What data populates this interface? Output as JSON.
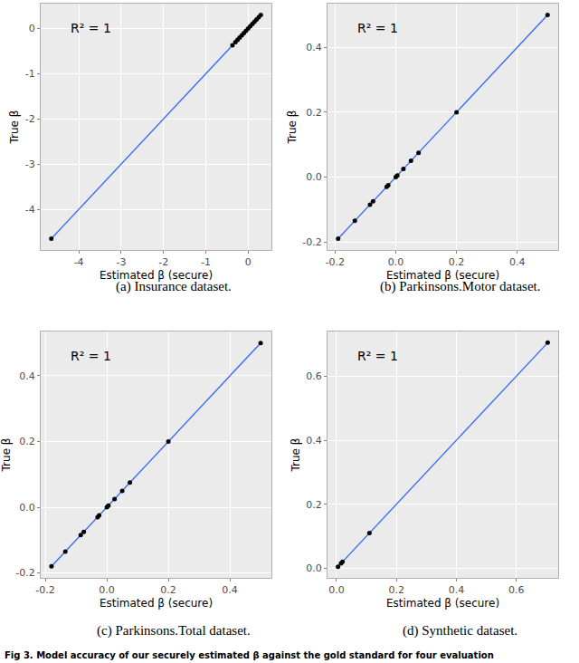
{
  "caption": "Fig 3. Model accuracy of our securely estimated β against the gold standard for four evaluation",
  "chart_data": [
    {
      "type": "scatter",
      "title": "(a) Insurance dataset.",
      "x_label": "Estimated β (secure)",
      "y_label": "True β",
      "annotations": [
        "R² = 1"
      ],
      "color": "#000000",
      "grid": true,
      "x": [
        -4.65,
        -0.37,
        -0.3,
        -0.25,
        -0.2,
        -0.15,
        -0.1,
        -0.05,
        0,
        0.05,
        0.1,
        0.15,
        0.2,
        0.25,
        0.3
      ],
      "values": [
        -4.65,
        -0.37,
        -0.3,
        -0.25,
        -0.2,
        -0.15,
        -0.1,
        -0.05,
        0,
        0.05,
        0.1,
        0.15,
        0.2,
        0.25,
        0.3
      ],
      "xlim": [
        -4.9,
        0.55
      ],
      "ylim": [
        -4.9,
        0.55
      ],
      "xticks": [
        -4,
        -3,
        -2,
        -1,
        0
      ],
      "yticks": [
        -4,
        -3,
        -2,
        -1,
        0
      ]
    },
    {
      "type": "scatter",
      "title": "(b) Parkinsons.Motor dataset.",
      "x_label": "Estimated β (secure)",
      "y_label": "True β",
      "annotations": [
        "R² = 1"
      ],
      "color": "#000000",
      "grid": true,
      "x": [
        -0.19,
        -0.135,
        -0.085,
        -0.075,
        -0.03,
        -0.025,
        0,
        0.005,
        0.025,
        0.05,
        0.075,
        0.2,
        0.5
      ],
      "values": [
        -0.19,
        -0.135,
        -0.085,
        -0.075,
        -0.03,
        -0.025,
        0,
        0.005,
        0.025,
        0.05,
        0.075,
        0.2,
        0.5
      ],
      "xlim": [
        -0.225,
        0.535
      ],
      "ylim": [
        -0.225,
        0.535
      ],
      "xticks": [
        -0.2,
        {
          "value": 0,
          "label": "0.0"
        },
        0.2,
        0.4
      ],
      "yticks": [
        -0.2,
        {
          "value": 0,
          "label": "0.0"
        },
        0.2,
        0.4
      ]
    },
    {
      "type": "scatter",
      "title": "(c) Parkinsons.Total dataset.",
      "x_label": "Estimated β (secure)",
      "y_label": "True β",
      "annotations": [
        "R² = 1"
      ],
      "color": "#000000",
      "grid": true,
      "x": [
        -0.18,
        -0.135,
        -0.085,
        -0.075,
        -0.03,
        -0.025,
        0,
        0.005,
        0.025,
        0.05,
        0.075,
        0.2,
        0.5
      ],
      "values": [
        -0.18,
        -0.135,
        -0.085,
        -0.075,
        -0.03,
        -0.025,
        0,
        0.005,
        0.025,
        0.05,
        0.075,
        0.2,
        0.5
      ],
      "xlim": [
        -0.215,
        0.535
      ],
      "ylim": [
        -0.215,
        0.535
      ],
      "xticks": [
        -0.2,
        {
          "value": 0,
          "label": "0.0"
        },
        0.2,
        0.4
      ],
      "yticks": [
        -0.2,
        {
          "value": 0,
          "label": "0.0"
        },
        0.2,
        0.4
      ]
    },
    {
      "type": "scatter",
      "title": "(d) Synthetic dataset.",
      "x_label": "Estimated β (secure)",
      "y_label": "True β",
      "annotations": [
        "R² = 1"
      ],
      "color": "#000000",
      "grid": true,
      "x": [
        0.005,
        0.015,
        0.02,
        0.11,
        0.705
      ],
      "values": [
        0.005,
        0.015,
        0.02,
        0.11,
        0.705
      ],
      "xlim": [
        -0.03,
        0.74
      ],
      "ylim": [
        -0.03,
        0.74
      ],
      "xticks": [
        {
          "value": 0,
          "label": "0.0"
        },
        {
          "value": 0.2,
          "label": "0.2"
        },
        {
          "value": 0.4,
          "label": "0.4"
        },
        {
          "value": 0.6,
          "label": "0.6"
        }
      ],
      "yticks": [
        {
          "value": 0,
          "label": "0.0"
        },
        {
          "value": 0.2,
          "label": "0.2"
        },
        {
          "value": 0.4,
          "label": "0.4"
        },
        {
          "value": 0.6,
          "label": "0.6"
        }
      ]
    }
  ]
}
